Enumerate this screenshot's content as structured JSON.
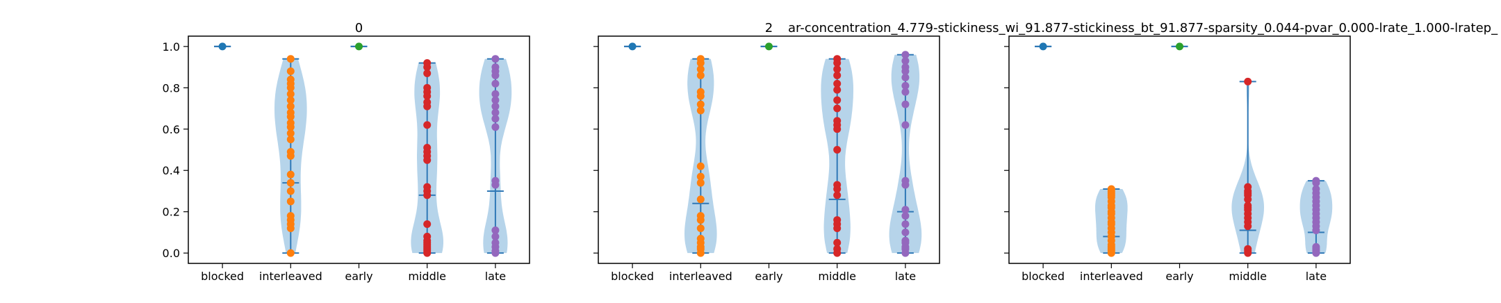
{
  "suptitle": "ar-concentration_4.779-stickiness_wi_91.877-stickiness_bt_91.877-sparsity_0.044-pvar_0.000-lrate_1.000-lratep_",
  "colors": {
    "violin_fill": "#9ec5e3",
    "stat_line": "#2f78b6",
    "blocked": "#1f77b4",
    "interleaved": "#ff7f0e",
    "early": "#2ca02c",
    "middle": "#d62728",
    "late": "#9467bd"
  },
  "chart_data": [
    {
      "type": "violin",
      "title": "0",
      "categories": [
        "blocked",
        "interleaved",
        "early",
        "middle",
        "late"
      ],
      "ylim": [
        -0.05,
        1.05
      ],
      "yticks": [
        "0.0",
        "0.2",
        "0.4",
        "0.6",
        "0.8",
        "1.0"
      ],
      "show_ytick_labels": true,
      "series": [
        {
          "category": "blocked",
          "min": 1.0,
          "mean": 1.0,
          "max": 1.0,
          "points": [
            1.0
          ]
        },
        {
          "category": "interleaved",
          "min": 0.0,
          "mean": 0.34,
          "max": 0.94,
          "points": [
            0.94,
            0.88,
            0.84,
            0.82,
            0.8,
            0.77,
            0.74,
            0.71,
            0.68,
            0.66,
            0.63,
            0.61,
            0.58,
            0.55,
            0.49,
            0.47,
            0.38,
            0.34,
            0.3,
            0.25,
            0.18,
            0.16,
            0.14,
            0.12,
            0.0
          ]
        },
        {
          "category": "early",
          "min": 1.0,
          "mean": 1.0,
          "max": 1.0,
          "points": [
            1.0
          ]
        },
        {
          "category": "middle",
          "min": 0.0,
          "mean": 0.28,
          "max": 0.92,
          "points": [
            0.92,
            0.9,
            0.87,
            0.8,
            0.78,
            0.76,
            0.73,
            0.71,
            0.62,
            0.51,
            0.49,
            0.47,
            0.45,
            0.32,
            0.3,
            0.28,
            0.14,
            0.08,
            0.06,
            0.05,
            0.04,
            0.03,
            0.02,
            0.01,
            0.0
          ]
        },
        {
          "category": "late",
          "min": 0.0,
          "mean": 0.3,
          "max": 0.94,
          "points": [
            0.94,
            0.9,
            0.88,
            0.86,
            0.82,
            0.77,
            0.74,
            0.71,
            0.68,
            0.65,
            0.61,
            0.35,
            0.33,
            0.11,
            0.08,
            0.05,
            0.03,
            0.01,
            0.0
          ]
        }
      ]
    },
    {
      "type": "violin",
      "title": "2",
      "categories": [
        "blocked",
        "interleaved",
        "early",
        "middle",
        "late"
      ],
      "ylim": [
        -0.05,
        1.05
      ],
      "yticks": [
        "0.0",
        "0.2",
        "0.4",
        "0.6",
        "0.8",
        "1.0"
      ],
      "show_ytick_labels": false,
      "series": [
        {
          "category": "blocked",
          "min": 1.0,
          "mean": 1.0,
          "max": 1.0,
          "points": [
            1.0
          ]
        },
        {
          "category": "interleaved",
          "min": 0.0,
          "mean": 0.24,
          "max": 0.94,
          "points": [
            0.94,
            0.92,
            0.89,
            0.86,
            0.78,
            0.76,
            0.72,
            0.69,
            0.42,
            0.37,
            0.34,
            0.26,
            0.18,
            0.16,
            0.12,
            0.07,
            0.05,
            0.03,
            0.02,
            0.0
          ]
        },
        {
          "category": "early",
          "min": 1.0,
          "mean": 1.0,
          "max": 1.0,
          "points": [
            1.0
          ]
        },
        {
          "category": "middle",
          "min": 0.0,
          "mean": 0.26,
          "max": 0.94,
          "points": [
            0.94,
            0.92,
            0.89,
            0.86,
            0.82,
            0.79,
            0.74,
            0.7,
            0.64,
            0.62,
            0.6,
            0.5,
            0.33,
            0.31,
            0.28,
            0.16,
            0.14,
            0.12,
            0.05,
            0.02,
            0.0
          ]
        },
        {
          "category": "late",
          "min": 0.0,
          "mean": 0.2,
          "max": 0.96,
          "points": [
            0.96,
            0.93,
            0.9,
            0.88,
            0.85,
            0.81,
            0.78,
            0.72,
            0.62,
            0.35,
            0.33,
            0.21,
            0.18,
            0.14,
            0.1,
            0.06,
            0.05,
            0.03,
            0.02,
            0.0
          ]
        }
      ]
    },
    {
      "type": "violin",
      "title": "",
      "categories": [
        "blocked",
        "interleaved",
        "early",
        "middle",
        "late"
      ],
      "ylim": [
        -0.05,
        1.05
      ],
      "yticks": [
        "0.0",
        "0.2",
        "0.4",
        "0.6",
        "0.8",
        "1.0"
      ],
      "show_ytick_labels": false,
      "series": [
        {
          "category": "blocked",
          "min": 1.0,
          "mean": 1.0,
          "max": 1.0,
          "points": [
            1.0
          ]
        },
        {
          "category": "interleaved",
          "min": 0.0,
          "mean": 0.08,
          "max": 0.31,
          "points": [
            0.31,
            0.3,
            0.29,
            0.28,
            0.27,
            0.25,
            0.23,
            0.22,
            0.2,
            0.19,
            0.17,
            0.15,
            0.14,
            0.12,
            0.1,
            0.08,
            0.06,
            0.04,
            0.03,
            0.02,
            0.01,
            0.0
          ]
        },
        {
          "category": "early",
          "min": 1.0,
          "mean": 1.0,
          "max": 1.0,
          "points": [
            1.0
          ]
        },
        {
          "category": "middle",
          "min": 0.0,
          "mean": 0.11,
          "max": 0.83,
          "points": [
            0.83,
            0.32,
            0.3,
            0.29,
            0.28,
            0.26,
            0.23,
            0.22,
            0.21,
            0.19,
            0.17,
            0.15,
            0.13,
            0.02,
            0.01,
            0.0
          ]
        },
        {
          "category": "late",
          "min": 0.0,
          "mean": 0.1,
          "max": 0.35,
          "points": [
            0.35,
            0.34,
            0.31,
            0.29,
            0.27,
            0.25,
            0.23,
            0.21,
            0.19,
            0.17,
            0.15,
            0.13,
            0.11,
            0.03,
            0.02,
            0.01,
            0.0
          ]
        }
      ]
    }
  ]
}
